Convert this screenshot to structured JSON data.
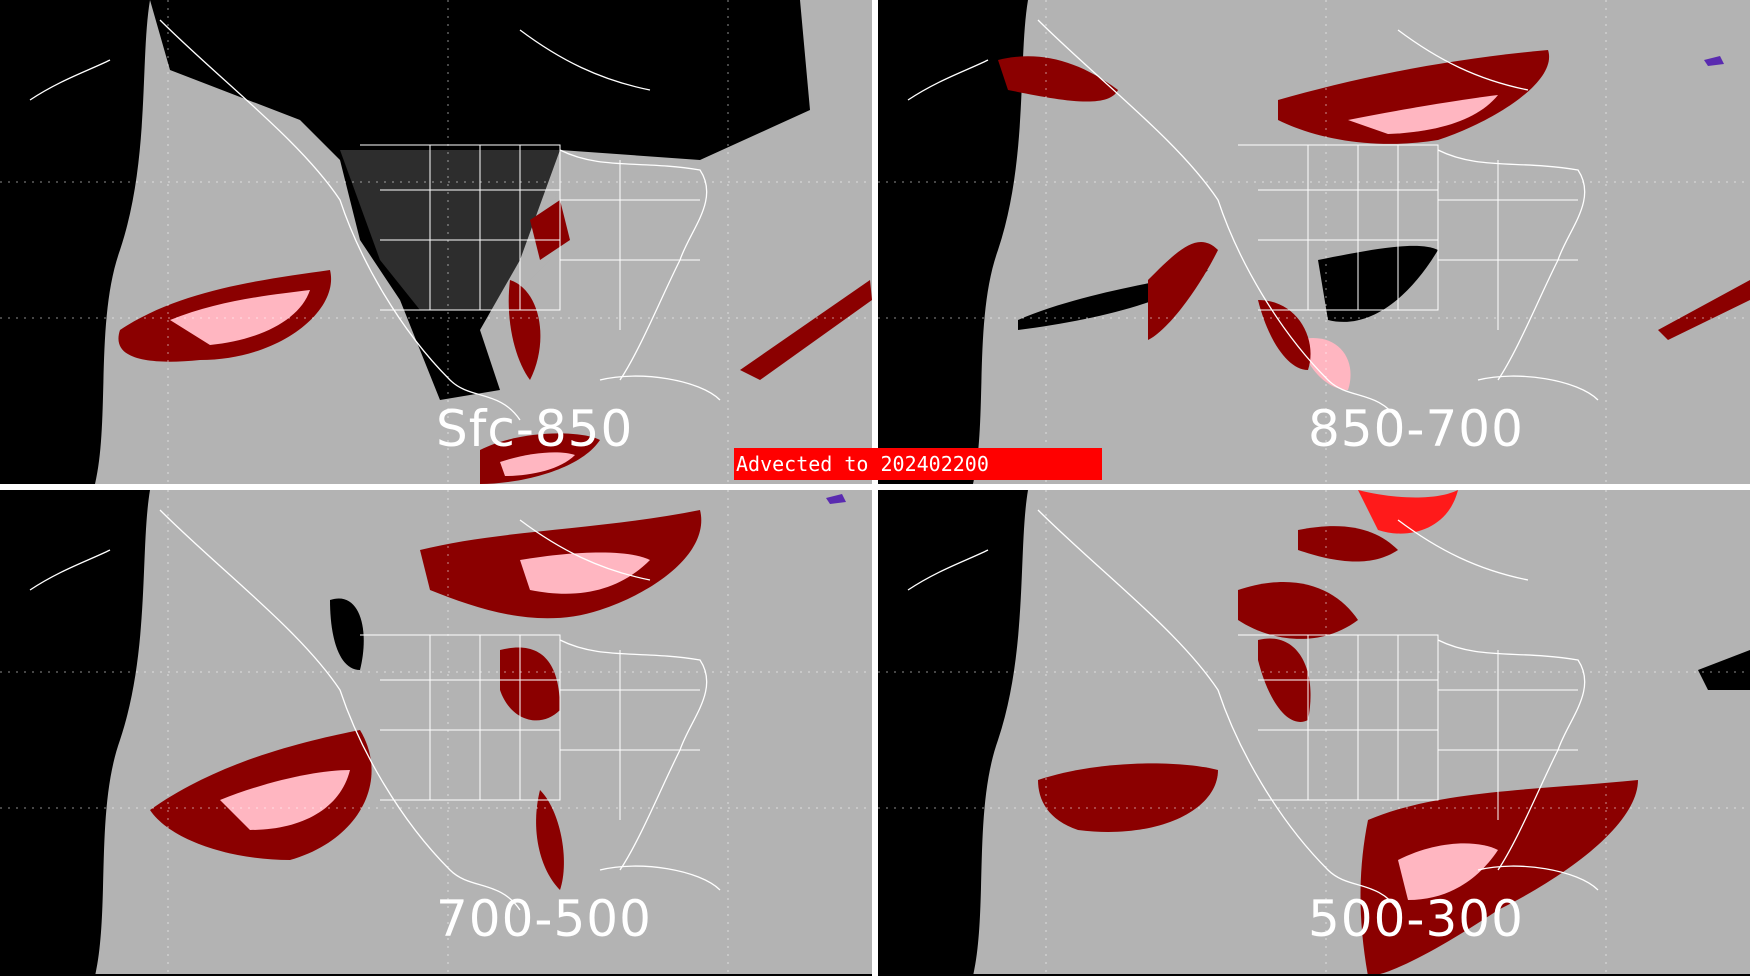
{
  "banner": {
    "advected_prefix": "Advected to",
    "valid_time": "202402200"
  },
  "panels": [
    {
      "id": "sfc-850",
      "label": "Sfc-850"
    },
    {
      "id": "850-700",
      "label": "850-700"
    },
    {
      "id": "700-500",
      "label": "700-500"
    },
    {
      "id": "500-300",
      "label": "500-300"
    }
  ],
  "colors": {
    "background": "#000000",
    "disk": "#b3b3b3",
    "low_cloud": "#000000",
    "red_dark": "#8b0000",
    "red_light": "#ffb6c1",
    "red_bright": "#ff1a1a",
    "purple": "#5a2bb0",
    "lines": "#ffffff",
    "banner": "#ff0000"
  }
}
